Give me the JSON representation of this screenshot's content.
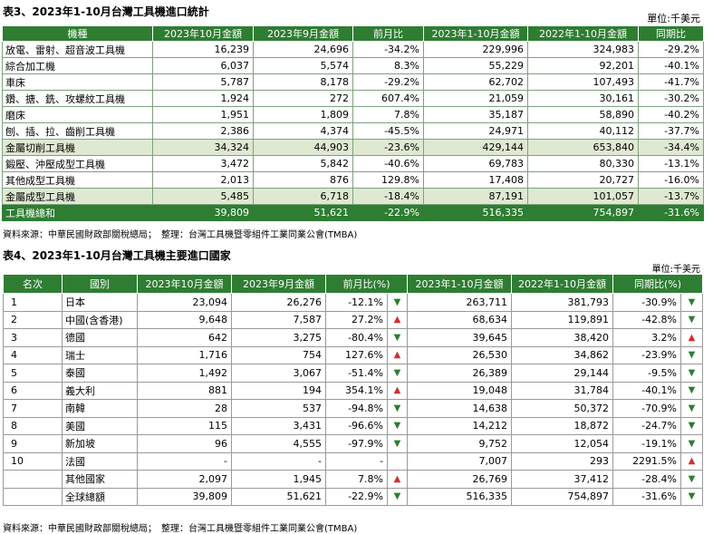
{
  "table3": {
    "title": "表3、2023年1-10月台灣工具機進口統計",
    "unit": "單位:千美元",
    "headers": [
      "機種",
      "2023年10月金額",
      "2023年9月金額",
      "前月比",
      "2023年1-10月金額",
      "2022年1-10月金額",
      "同期比"
    ],
    "rows": [
      {
        "name": "放電、雷射、超音波工具機",
        "oct": "16,239",
        "sep": "24,696",
        "mom": "-34.2%",
        "ytd23": "229,996",
        "ytd22": "324,983",
        "yoy": "-29.2%",
        "highlight": false
      },
      {
        "name": "綜合加工機",
        "oct": "6,037",
        "sep": "5,574",
        "mom": "8.3%",
        "ytd23": "55,229",
        "ytd22": "92,201",
        "yoy": "-40.1%",
        "highlight": false
      },
      {
        "name": "車床",
        "oct": "5,787",
        "sep": "8,178",
        "mom": "-29.2%",
        "ytd23": "62,702",
        "ytd22": "107,493",
        "yoy": "-41.7%",
        "highlight": false
      },
      {
        "name": "鑽、搪、銑、攻螺紋工具機",
        "oct": "1,924",
        "sep": "272",
        "mom": "607.4%",
        "ytd23": "21,059",
        "ytd22": "30,161",
        "yoy": "-30.2%",
        "highlight": false
      },
      {
        "name": "磨床",
        "oct": "1,951",
        "sep": "1,809",
        "mom": "7.8%",
        "ytd23": "35,187",
        "ytd22": "58,890",
        "yoy": "-40.2%",
        "highlight": false
      },
      {
        "name": "刨、插、拉、齒削工具機",
        "oct": "2,386",
        "sep": "4,374",
        "mom": "-45.5%",
        "ytd23": "24,971",
        "ytd22": "40,112",
        "yoy": "-37.7%",
        "highlight": false
      },
      {
        "name": "金屬切削工具機",
        "oct": "34,324",
        "sep": "44,903",
        "mom": "-23.6%",
        "ytd23": "429,144",
        "ytd22": "653,840",
        "yoy": "-34.4%",
        "highlight": true
      },
      {
        "name": "鍛壓、沖壓成型工具機",
        "oct": "3,472",
        "sep": "5,842",
        "mom": "-40.6%",
        "ytd23": "69,783",
        "ytd22": "80,330",
        "yoy": "-13.1%",
        "highlight": false
      },
      {
        "name": "其他成型工具機",
        "oct": "2,013",
        "sep": "876",
        "mom": "129.8%",
        "ytd23": "17,408",
        "ytd22": "20,727",
        "yoy": "-16.0%",
        "highlight": false
      },
      {
        "name": "金屬成型工具機",
        "oct": "5,485",
        "sep": "6,718",
        "mom": "-18.4%",
        "ytd23": "87,191",
        "ytd22": "101,057",
        "yoy": "-13.7%",
        "highlight": true
      }
    ],
    "total": {
      "name": "工具機總和",
      "oct": "39,809",
      "sep": "51,621",
      "mom": "-22.9%",
      "ytd23": "516,335",
      "ytd22": "754,897",
      "yoy": "-31.6%"
    },
    "source": "資料來源：中華民國財政部關稅總局；　整理：台灣工具機暨零組件工業同業公會(TMBA)"
  },
  "table4": {
    "title": "表4、2023年1-10月台灣工具機主要進口國家",
    "unit": "單位:千美元",
    "headers": [
      "名次",
      "國別",
      "2023年10月金額",
      "2023年9月金額",
      "前月比(%)",
      "2023年1-10月金額",
      "2022年1-10月金額",
      "同期比(%)"
    ],
    "rows": [
      {
        "rank": "1",
        "country": "日本",
        "oct": "23,094",
        "sep": "26,276",
        "mom": "-12.1%",
        "mom_dir": "down",
        "ytd23": "263,711",
        "ytd22": "381,793",
        "yoy": "-30.9%",
        "yoy_dir": "down"
      },
      {
        "rank": "2",
        "country": "中國(含香港)",
        "oct": "9,648",
        "sep": "7,587",
        "mom": "27.2%",
        "mom_dir": "up",
        "ytd23": "68,634",
        "ytd22": "119,891",
        "yoy": "-42.8%",
        "yoy_dir": "down"
      },
      {
        "rank": "3",
        "country": "德國",
        "oct": "642",
        "sep": "3,275",
        "mom": "-80.4%",
        "mom_dir": "down",
        "ytd23": "39,645",
        "ytd22": "38,420",
        "yoy": "3.2%",
        "yoy_dir": "up"
      },
      {
        "rank": "4",
        "country": "瑞士",
        "oct": "1,716",
        "sep": "754",
        "mom": "127.6%",
        "mom_dir": "up",
        "ytd23": "26,530",
        "ytd22": "34,862",
        "yoy": "-23.9%",
        "yoy_dir": "down"
      },
      {
        "rank": "5",
        "country": "泰國",
        "oct": "1,492",
        "sep": "3,067",
        "mom": "-51.4%",
        "mom_dir": "down",
        "ytd23": "26,389",
        "ytd22": "29,144",
        "yoy": "-9.5%",
        "yoy_dir": "down"
      },
      {
        "rank": "6",
        "country": "義大利",
        "oct": "881",
        "sep": "194",
        "mom": "354.1%",
        "mom_dir": "up",
        "ytd23": "19,048",
        "ytd22": "31,784",
        "yoy": "-40.1%",
        "yoy_dir": "down"
      },
      {
        "rank": "7",
        "country": "南韓",
        "oct": "28",
        "sep": "537",
        "mom": "-94.8%",
        "mom_dir": "down",
        "ytd23": "14,638",
        "ytd22": "50,372",
        "yoy": "-70.9%",
        "yoy_dir": "down"
      },
      {
        "rank": "8",
        "country": "美國",
        "oct": "115",
        "sep": "3,431",
        "mom": "-96.6%",
        "mom_dir": "down",
        "ytd23": "14,212",
        "ytd22": "18,872",
        "yoy": "-24.7%",
        "yoy_dir": "down"
      },
      {
        "rank": "9",
        "country": "新加坡",
        "oct": "96",
        "sep": "4,555",
        "mom": "-97.9%",
        "mom_dir": "down",
        "ytd23": "9,752",
        "ytd22": "12,054",
        "yoy": "-19.1%",
        "yoy_dir": "down"
      },
      {
        "rank": "10",
        "country": "法國",
        "oct": "-",
        "sep": "-",
        "mom": "-",
        "mom_dir": "",
        "ytd23": "7,007",
        "ytd22": "293",
        "yoy": "2291.5%",
        "yoy_dir": "up"
      },
      {
        "rank": "",
        "country": "其他國家",
        "oct": "2,097",
        "sep": "1,945",
        "mom": "7.8%",
        "mom_dir": "up",
        "ytd23": "26,769",
        "ytd22": "37,412",
        "yoy": "-28.4%",
        "yoy_dir": "down"
      },
      {
        "rank": "",
        "country": "全球總額",
        "oct": "39,809",
        "sep": "51,621",
        "mom": "-22.9%",
        "mom_dir": "down",
        "ytd23": "516,335",
        "ytd22": "754,897",
        "yoy": "-31.6%",
        "yoy_dir": "down"
      }
    ],
    "arrows": {
      "up": "▲",
      "down": "▼"
    },
    "source": "資料來源：中華民國財政部關稅總局；　整理：台灣工具機暨零組件工業同業公會(TMBA)"
  },
  "colors": {
    "header_green": "#2e7d32",
    "highlight": "#dfe9d2",
    "up": "#d32f2f",
    "down": "#2e7d32"
  }
}
